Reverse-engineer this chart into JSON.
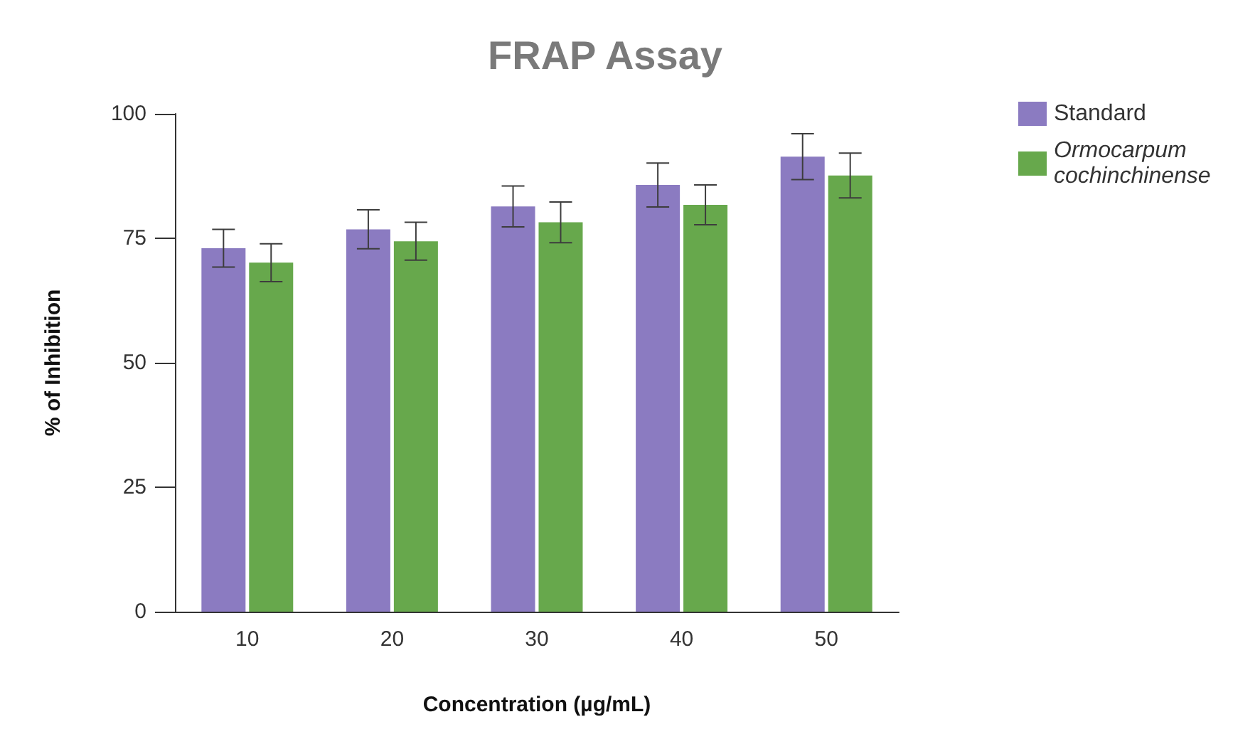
{
  "chart_data": {
    "type": "bar",
    "title": "FRAP Assay",
    "xlabel": "Concentration (µg/mL)",
    "ylabel": "% of Inhibition",
    "categories": [
      "10",
      "20",
      "30",
      "40",
      "50"
    ],
    "series": [
      {
        "name": "Standard",
        "color": "#8b7bc1",
        "values": [
          73.0,
          76.8,
          81.4,
          85.7,
          91.4
        ],
        "errors": [
          3.8,
          3.9,
          4.1,
          4.4,
          4.6
        ]
      },
      {
        "name": "Ormocarpum cochinchinense",
        "color": "#67a84c",
        "values": [
          70.1,
          74.4,
          78.2,
          81.7,
          87.6
        ],
        "errors": [
          3.8,
          3.8,
          4.1,
          4.0,
          4.5
        ]
      }
    ],
    "ylim": [
      0,
      100
    ],
    "yticks": [
      0,
      25,
      50,
      75,
      100
    ],
    "grid": false,
    "legend": "top right"
  }
}
